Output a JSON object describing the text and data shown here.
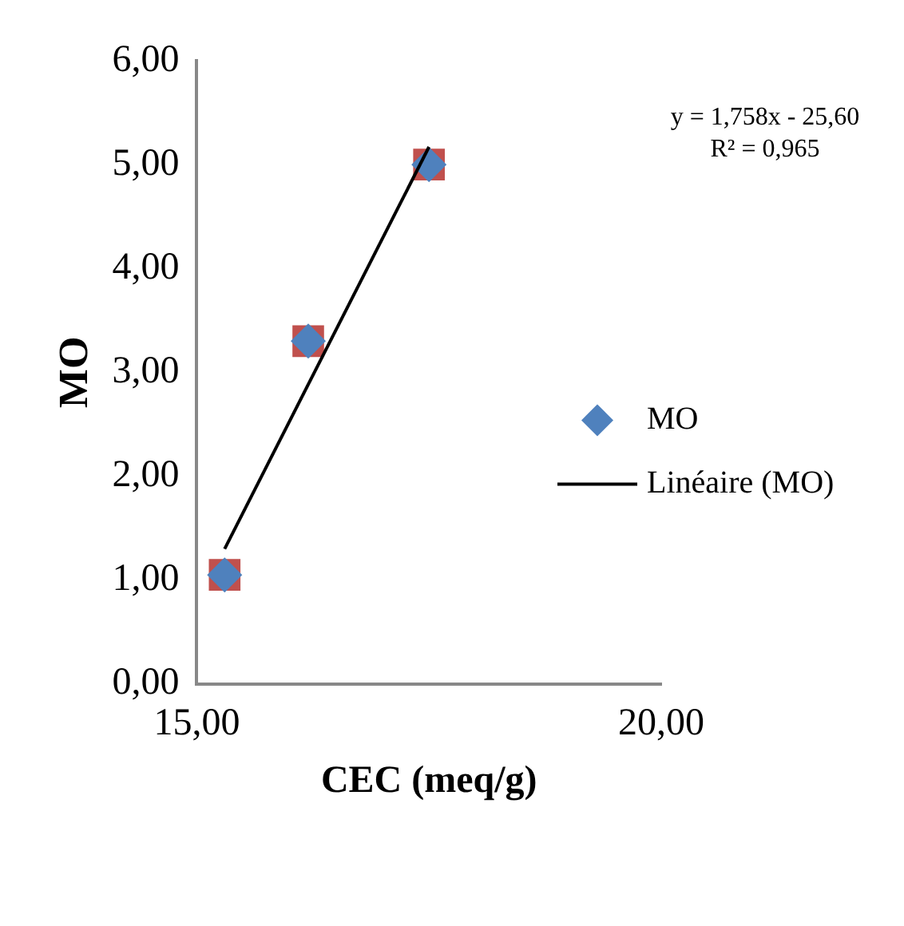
{
  "chart_data": {
    "type": "scatter",
    "xlabel": "CEC (meq/g)",
    "ylabel": "MO",
    "x": [
      15.3,
      16.2,
      17.5
    ],
    "series": [
      {
        "color": "#c0504d",
        "marker": "square",
        "values": [
          1.05,
          3.3,
          5.0
        ]
      },
      {
        "name": "MO",
        "color": "#4f81bd",
        "marker": "diamond",
        "values": [
          1.05,
          3.3,
          5.0
        ]
      },
      {
        "name": "Linéaire (MO)",
        "type": "line",
        "color": "#000000",
        "marker": "none",
        "line_style": "solid",
        "x": [
          15.3,
          17.5
        ],
        "values": [
          1.3,
          5.17
        ]
      }
    ],
    "xlim": [
      15,
      20
    ],
    "xticks": [
      {
        "value": 15,
        "label": "15,00"
      },
      {
        "value": 20,
        "label": "20,00"
      }
    ],
    "ylim": [
      0,
      6
    ],
    "yticks": [
      {
        "value": 0,
        "label": "0,00"
      },
      {
        "value": 1,
        "label": "1,00"
      },
      {
        "value": 2,
        "label": "2,00"
      },
      {
        "value": 3,
        "label": "3,00"
      },
      {
        "value": 4,
        "label": "4,00"
      },
      {
        "value": 5,
        "label": "5,00"
      },
      {
        "value": 6,
        "label": "6,00"
      }
    ],
    "grid": false,
    "legend": "right",
    "annotations": [
      "y = 1,758x - 25,60",
      "R² = 0,965"
    ]
  }
}
